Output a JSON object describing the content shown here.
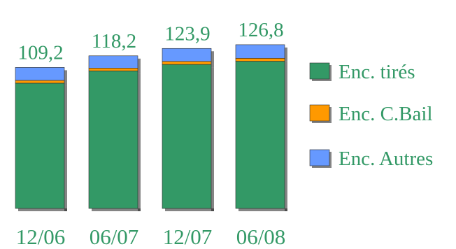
{
  "chart_data": {
    "type": "bar",
    "stacked": true,
    "categories": [
      "12/06",
      "06/07",
      "12/07",
      "06/08"
    ],
    "totals": [
      "109,2",
      "118,2",
      "123,9",
      "126,8"
    ],
    "series": [
      {
        "name": "Enc. tirés",
        "color": "#339966",
        "values": [
          97.0,
          106.5,
          111.5,
          114.0
        ]
      },
      {
        "name": "Enc. C.Bail",
        "color": "#ff9900",
        "values": [
          2.2,
          2.2,
          2.4,
          2.3
        ]
      },
      {
        "name": "Enc. Autres",
        "color": "#6699ff",
        "values": [
          10.0,
          9.5,
          10.0,
          10.5
        ]
      }
    ],
    "legend_position": "right",
    "label_color": "#339966",
    "grid": false,
    "ylim": [
      0,
      130
    ]
  }
}
